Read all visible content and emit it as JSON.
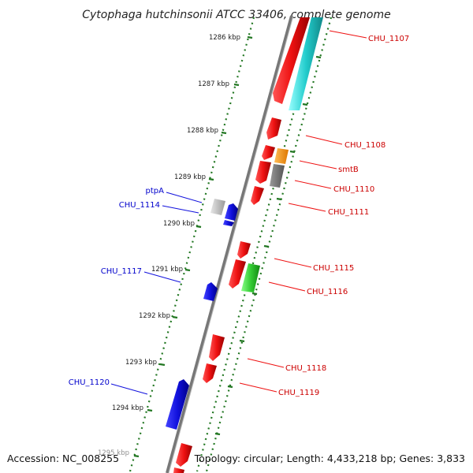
{
  "title": "Cytophaga hutchinsonii ATCC 33406, complete genome",
  "footer": {
    "accession": "Accession: NC_008255",
    "summary": "Topology: circular; Length: 4,433,218 bp; Genes: 3,833"
  },
  "colors": {
    "forward": "#ee1111",
    "reverse": "#1111dd",
    "cds_cyan": "#22cccc",
    "cds_orange": "#ff8800",
    "cds_gray": "#777777",
    "cds_lightgray": "#bbbbbb",
    "cds_green": "#33cc33",
    "tick": "#227722",
    "backbone": "#888888"
  },
  "scale_marks": [
    {
      "label": "1286 kbp"
    },
    {
      "label": "1287 kbp"
    },
    {
      "label": "1288 kbp"
    },
    {
      "label": "1289 kbp"
    },
    {
      "label": "1290 kbp"
    },
    {
      "label": "1291 kbp"
    },
    {
      "label": "1292 kbp"
    },
    {
      "label": "1293 kbp"
    },
    {
      "label": "1294 kbp"
    },
    {
      "label": "1295 kbp"
    }
  ],
  "genes": {
    "forward": [
      {
        "label": "CHU_1107"
      },
      {
        "label": "CHU_1108"
      },
      {
        "label": "smtB"
      },
      {
        "label": "CHU_1110"
      },
      {
        "label": "CHU_1111"
      },
      {
        "label": "CHU_1115"
      },
      {
        "label": "CHU_1116"
      },
      {
        "label": "CHU_1118"
      },
      {
        "label": "CHU_1119"
      }
    ],
    "reverse": [
      {
        "label": "ptpA"
      },
      {
        "label": "CHU_1114"
      },
      {
        "label": "CHU_1117"
      },
      {
        "label": "CHU_1120"
      }
    ]
  }
}
